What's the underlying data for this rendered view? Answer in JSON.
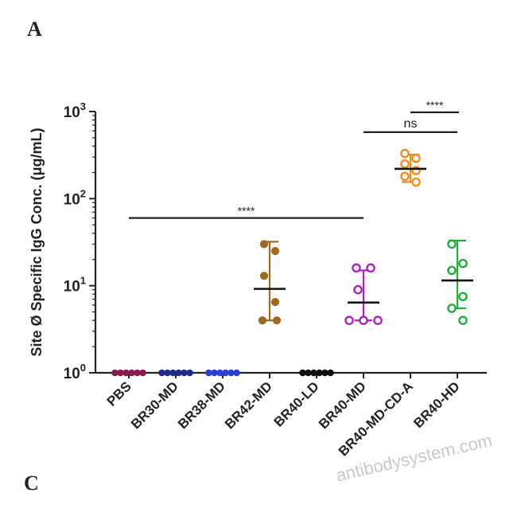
{
  "panel_labels": {
    "top": "A",
    "bottom": "C"
  },
  "watermark": "antibodysystem.com",
  "chart_data": {
    "type": "scatter",
    "title": "",
    "xlabel": "",
    "ylabel": "Site Ø Specific IgG Conc. (μg/mL)",
    "yscale": "log",
    "ylim": [
      1,
      1000
    ],
    "yticks": [
      {
        "value": 1,
        "base": "10",
        "exp": "0"
      },
      {
        "value": 10,
        "base": "10",
        "exp": "1"
      },
      {
        "value": 100,
        "base": "10",
        "exp": "2"
      },
      {
        "value": 1000,
        "base": "10",
        "exp": "3"
      }
    ],
    "categories": [
      "PBS",
      "BR30-MD",
      "BR38-MD",
      "BR42-MD",
      "BR40-LD",
      "BR40-MD",
      "BR40-MD-CD-A",
      "BR40-HD"
    ],
    "series": [
      {
        "category": "PBS",
        "color": "#8b1a4f",
        "marker": "filled",
        "points": [
          1,
          1,
          1,
          1,
          1,
          1
        ],
        "mean": null,
        "err": null
      },
      {
        "category": "BR30-MD",
        "color": "#1f2a8a",
        "marker": "filled",
        "points": [
          1,
          1,
          1,
          1,
          1,
          1
        ],
        "mean": null,
        "err": null
      },
      {
        "category": "BR38-MD",
        "color": "#2a3fd6",
        "marker": "filled",
        "points": [
          1,
          1,
          1,
          1,
          1,
          1
        ],
        "mean": null,
        "err": null
      },
      {
        "category": "BR42-MD",
        "color": "#a0671f",
        "marker": "filled",
        "points": [
          30,
          25,
          13,
          6.5,
          4,
          4
        ],
        "mean": 9.2,
        "err": [
          4,
          32
        ]
      },
      {
        "category": "BR40-LD",
        "color": "#111111",
        "marker": "filled",
        "points": [
          1,
          1,
          1,
          1,
          1,
          1
        ],
        "mean": null,
        "err": null
      },
      {
        "category": "BR40-MD",
        "color": "#b01fc1",
        "marker": "open",
        "points": [
          16,
          16,
          9,
          4,
          4,
          4
        ],
        "mean": 6.4,
        "err": [
          4,
          15
        ]
      },
      {
        "category": "BR40-MD-CD-A",
        "color": "#f58a1f",
        "marker": "open",
        "points": [
          330,
          290,
          250,
          210,
          180,
          155
        ],
        "mean": 220,
        "err": [
          155,
          320
        ]
      },
      {
        "category": "BR40-HD",
        "color": "#1fae3a",
        "marker": "open",
        "points": [
          30,
          18,
          15,
          7.5,
          5.5,
          4
        ],
        "mean": 11.5,
        "err": [
          5.5,
          33
        ]
      }
    ],
    "significance": [
      {
        "from": "PBS",
        "to": "BR40-MD",
        "y": 60,
        "label": "****"
      },
      {
        "from": "BR40-MD",
        "to": "BR40-HD",
        "y": 580,
        "label": "ns"
      },
      {
        "from": "BR40-MD-CD-A",
        "to": "BR40-HD",
        "y": 1000,
        "label": "****"
      }
    ]
  }
}
